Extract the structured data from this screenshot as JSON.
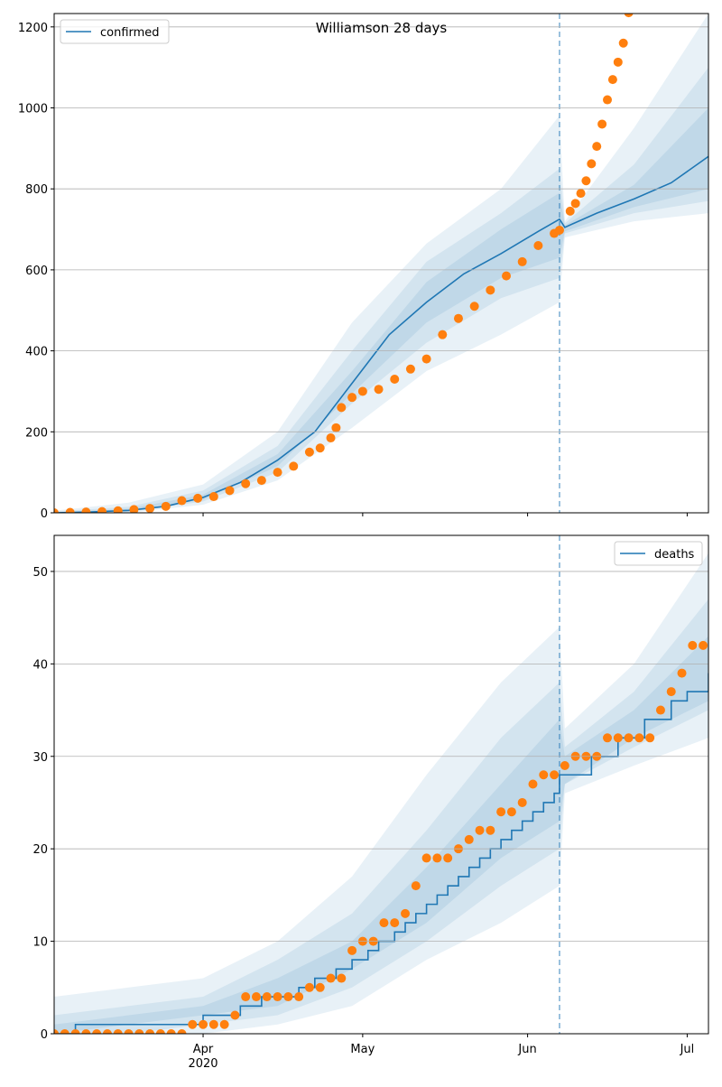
{
  "chart_data": [
    {
      "type": "line",
      "title": "Williamson 28 days",
      "legend_loc": "upper left",
      "grid": "y",
      "drawstyle": "linear",
      "xlim": [
        64,
        187
      ],
      "ylim": [
        0,
        1233
      ],
      "yticks": [
        0,
        200,
        400,
        600,
        800,
        1000,
        1200
      ],
      "vline": {
        "x": 159,
        "color": "#1f77b4",
        "style": "dashed"
      },
      "series": [
        {
          "name": "confirmed",
          "color": "#1f77b4",
          "x": [
            64,
            71,
            78,
            85,
            92,
            99,
            106,
            113,
            120,
            127,
            134,
            141,
            148,
            155,
            159,
            160,
            166,
            173,
            180,
            187
          ],
          "values": [
            0,
            2,
            6,
            16,
            38,
            75,
            130,
            200,
            320,
            440,
            520,
            590,
            640,
            695,
            725,
            705,
            740,
            775,
            815,
            880
          ]
        }
      ],
      "observed": {
        "color": "#ff7f0e",
        "x": [
          64,
          67,
          70,
          73,
          76,
          79,
          82,
          85,
          88,
          91,
          94,
          97,
          100,
          103,
          106,
          109,
          112,
          114,
          116,
          117,
          118,
          120,
          122,
          125,
          128,
          131,
          134,
          137,
          140,
          143,
          146,
          149,
          152,
          155,
          158,
          159,
          161,
          162,
          163,
          164,
          165,
          166,
          167,
          168,
          169,
          170,
          171,
          172
        ],
        "values": [
          0,
          1,
          2,
          3,
          5,
          8,
          11,
          16,
          30,
          36,
          40,
          55,
          72,
          80,
          100,
          115,
          150,
          160,
          185,
          210,
          260,
          285,
          300,
          305,
          330,
          355,
          380,
          440,
          480,
          510,
          550,
          585,
          620,
          660,
          690,
          698,
          745,
          764,
          789,
          820,
          862,
          905,
          960,
          1020,
          1070,
          1113,
          1160,
          1235
        ]
      },
      "bands": [
        {
          "color": "#1f77b4",
          "x": [
            64,
            78,
            92,
            106,
            120,
            134,
            148,
            159,
            160,
            173,
            187
          ],
          "lower": [
            0,
            0,
            20,
            80,
            210,
            350,
            440,
            520,
            680,
            720,
            740
          ],
          "upper": [
            5,
            25,
            70,
            200,
            470,
            665,
            800,
            981,
            720,
            950,
            1233
          ]
        },
        {
          "color": "#1f77b4",
          "x": [
            64,
            78,
            92,
            106,
            120,
            134,
            148,
            159,
            160,
            173,
            187
          ],
          "lower": [
            0,
            2,
            28,
            100,
            270,
            420,
            530,
            580,
            690,
            740,
            770
          ],
          "upper": [
            3,
            15,
            55,
            165,
            400,
            620,
            740,
            850,
            715,
            860,
            1100
          ]
        },
        {
          "color": "#1f77b4",
          "x": [
            64,
            78,
            92,
            106,
            120,
            134,
            148,
            159,
            160,
            173,
            187
          ],
          "lower": [
            0,
            3,
            32,
            115,
            295,
            470,
            580,
            630,
            695,
            755,
            800
          ],
          "upper": [
            1,
            10,
            45,
            145,
            350,
            570,
            700,
            790,
            710,
            810,
            1000
          ]
        }
      ]
    },
    {
      "type": "line",
      "legend_loc": "upper right",
      "grid": "y",
      "drawstyle": "steps-post",
      "xlim": [
        64,
        187
      ],
      "ylim": [
        0,
        53.9
      ],
      "yticks": [
        0,
        10,
        20,
        30,
        40,
        50
      ],
      "xticks": [
        {
          "value": 92,
          "label": "Apr"
        },
        {
          "value": 122,
          "label": "May"
        },
        {
          "value": 153,
          "label": "Jun"
        },
        {
          "value": 183,
          "label": "Jul"
        }
      ],
      "x_year_label": "2020",
      "vline": {
        "x": 159,
        "color": "#1f77b4",
        "style": "dashed"
      },
      "series": [
        {
          "name": "deaths",
          "color": "#1f77b4",
          "x": [
            64,
            68,
            92,
            99,
            103,
            110,
            113,
            117,
            120,
            123,
            125,
            128,
            130,
            132,
            134,
            136,
            138,
            140,
            142,
            144,
            146,
            148,
            150,
            152,
            154,
            156,
            158,
            159,
            160,
            165,
            170,
            175,
            180,
            183,
            187
          ],
          "values": [
            0,
            1,
            2,
            3,
            4,
            5,
            6,
            7,
            8,
            9,
            10,
            11,
            12,
            13,
            14,
            15,
            16,
            17,
            18,
            19,
            20,
            21,
            22,
            23,
            24,
            25,
            26,
            28,
            28,
            30,
            32,
            34,
            36,
            37,
            39
          ]
        }
      ],
      "observed": {
        "color": "#ff7f0e",
        "x": [
          64,
          66,
          68,
          70,
          72,
          74,
          76,
          78,
          80,
          82,
          84,
          86,
          88,
          90,
          92,
          94,
          96,
          98,
          100,
          102,
          104,
          106,
          108,
          110,
          112,
          114,
          116,
          118,
          120,
          122,
          124,
          126,
          128,
          130,
          132,
          134,
          136,
          138,
          140,
          142,
          144,
          146,
          148,
          150,
          152,
          154,
          156,
          158,
          160,
          162,
          164,
          166,
          168,
          170,
          172,
          174,
          176,
          178,
          180,
          182,
          184,
          186
        ],
        "values": [
          0,
          0,
          0,
          0,
          0,
          0,
          0,
          0,
          0,
          0,
          0,
          0,
          0,
          1,
          1,
          1,
          1,
          2,
          4,
          4,
          4,
          4,
          4,
          4,
          5,
          5,
          6,
          6,
          9,
          10,
          10,
          12,
          12,
          13,
          16,
          19,
          19,
          19,
          20,
          21,
          22,
          22,
          24,
          24,
          25,
          27,
          28,
          28,
          29,
          30,
          30,
          30,
          32,
          32,
          32,
          32,
          32,
          35,
          37,
          39,
          42,
          42
        ]
      },
      "bands": [
        {
          "color": "#1f77b4",
          "x": [
            64,
            78,
            92,
            106,
            120,
            134,
            148,
            159,
            160,
            173,
            187
          ],
          "lower": [
            0,
            0,
            0,
            1,
            3,
            8,
            12,
            16,
            26,
            29,
            32
          ],
          "upper": [
            4,
            5,
            6,
            10,
            17,
            28,
            38,
            44,
            33,
            40,
            52
          ]
        },
        {
          "color": "#1f77b4",
          "x": [
            64,
            78,
            92,
            106,
            120,
            134,
            148,
            159,
            160,
            173,
            187
          ],
          "lower": [
            0,
            0,
            1,
            2,
            5,
            10,
            16,
            20,
            27,
            31,
            35
          ],
          "upper": [
            2,
            3,
            4,
            8,
            13,
            22,
            32,
            38,
            31,
            37,
            47
          ]
        },
        {
          "color": "#1f77b4",
          "x": [
            64,
            78,
            92,
            106,
            120,
            134,
            148,
            159,
            160,
            173,
            187
          ],
          "lower": [
            0,
            1,
            2,
            3,
            7,
            12,
            19,
            23,
            27,
            32,
            36
          ],
          "upper": [
            1,
            2,
            3,
            6,
            10,
            18,
            27,
            34,
            30,
            35,
            43
          ]
        }
      ]
    }
  ]
}
